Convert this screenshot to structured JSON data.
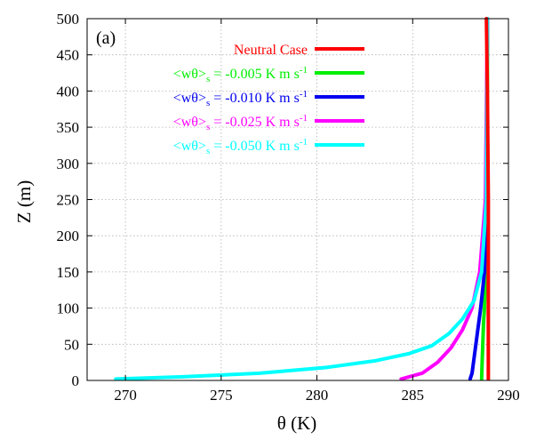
{
  "panel_label": "(a)",
  "colors": {
    "neutral": "#ff0000",
    "s005": "#00ee00",
    "s010": "#0000ee",
    "s025": "#ff00ff",
    "s050": "#00ffff"
  },
  "chart_data": {
    "type": "line",
    "xlabel": "θ (K)",
    "ylabel": "Z (m)",
    "xlim": [
      268,
      290
    ],
    "ylim": [
      0,
      500
    ],
    "xticks": [
      "270",
      "275",
      "280",
      "285",
      "290"
    ],
    "yticks": [
      "0",
      "50",
      "100",
      "150",
      "200",
      "250",
      "300",
      "350",
      "400",
      "450",
      "500"
    ],
    "grid": true,
    "legend_position": "top-center",
    "series": [
      {
        "key": "neutral",
        "legend": {
          "prefix": "Neutral Case",
          "sub": "",
          "suffix": "",
          "sup": ""
        },
        "x": [
          288.95,
          288.95,
          288.95,
          288.95,
          288.95,
          288.9,
          288.85
        ],
        "y": [
          2,
          50,
          100,
          150,
          250,
          400,
          500
        ]
      },
      {
        "key": "s005",
        "legend": {
          "prefix": "<wθ>",
          "sub": "s",
          "suffix": " = -0.005 K m s",
          "sup": "-1"
        },
        "x": [
          288.6,
          288.62,
          288.66,
          288.7,
          288.75,
          288.8,
          288.9,
          288.9
        ],
        "y": [
          2,
          20,
          50,
          80,
          100,
          150,
          300,
          500
        ]
      },
      {
        "key": "s010",
        "legend": {
          "prefix": "<wθ>",
          "sub": "s",
          "suffix": " = -0.010 K m s",
          "sup": "-1"
        },
        "x": [
          288.0,
          288.1,
          288.2,
          288.35,
          288.55,
          288.75,
          288.85,
          288.9
        ],
        "y": [
          2,
          10,
          30,
          60,
          100,
          150,
          250,
          500
        ]
      },
      {
        "key": "s025",
        "legend": {
          "prefix": "<wθ>",
          "sub": "s",
          "suffix": " = -0.025 K m s",
          "sup": "-1"
        },
        "x": [
          284.4,
          285.5,
          286.3,
          287.0,
          287.6,
          288.1,
          288.5,
          288.8,
          288.9
        ],
        "y": [
          2,
          10,
          25,
          45,
          70,
          100,
          150,
          250,
          500
        ]
      },
      {
        "key": "s050",
        "legend": {
          "prefix": "<wθ>",
          "sub": "s",
          "suffix": " = -0.050 K m s",
          "sup": "-1"
        },
        "x": [
          269.5,
          273.0,
          277.0,
          280.5,
          283.0,
          284.8,
          286.0,
          286.9,
          287.6,
          288.2,
          288.6,
          288.85,
          288.9
        ],
        "y": [
          2,
          5,
          10,
          18,
          27,
          37,
          48,
          65,
          85,
          110,
          150,
          250,
          500
        ]
      }
    ]
  }
}
